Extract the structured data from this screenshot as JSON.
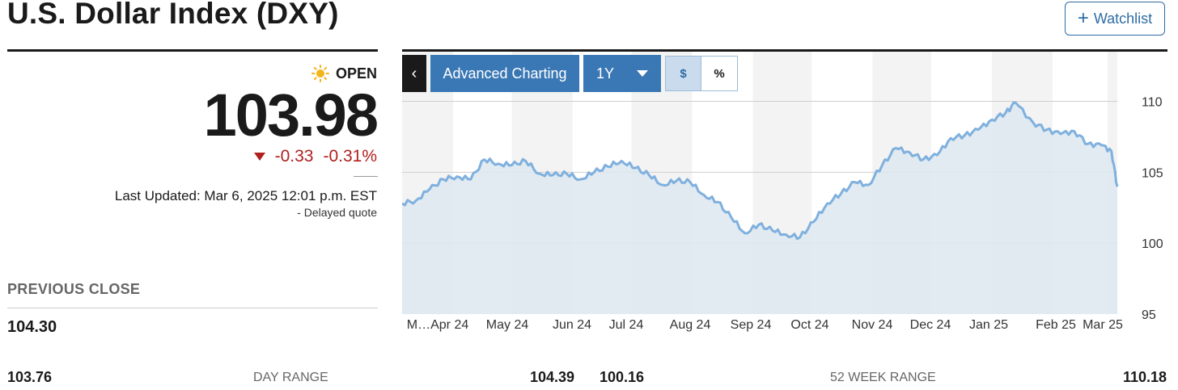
{
  "header": {
    "title": "U.S. Dollar Index (DXY)",
    "watchlist_label": "Watchlist"
  },
  "quote": {
    "status": "OPEN",
    "price": "103.98",
    "change": "-0.33",
    "change_pct": "-0.31%",
    "last_updated": "Last Updated: Mar 6, 2025 12:01 p.m. EST",
    "delayed": "-  Delayed quote"
  },
  "previous_close": {
    "label": "PREVIOUS CLOSE",
    "value": "104.30"
  },
  "day_range": {
    "low": "103.76",
    "label": "DAY RANGE",
    "high": "104.39"
  },
  "week52_range": {
    "low": "100.16",
    "label": "52 WEEK RANGE",
    "high": "110.18"
  },
  "chart_controls": {
    "advanced_label": "Advanced Charting",
    "range_label": "1Y",
    "dollar_label": "$",
    "percent_label": "%"
  },
  "colors": {
    "negative": "#b0201e",
    "accent": "#3a78b5",
    "line": "#7fb0de",
    "area": "#dde7f0"
  },
  "chart_data": {
    "type": "area",
    "title": "",
    "xlabel": "",
    "ylabel": "",
    "ylim": [
      95,
      111
    ],
    "yticks": [
      95,
      100,
      105,
      110
    ],
    "grid": "horizontal",
    "month_labels": [
      "M…Apr 24",
      "May 24",
      "Jun 24",
      "Jul 24",
      "Aug 24",
      "Sep 24",
      "Oct 24",
      "Nov 24",
      "Dec 24",
      "Jan 25",
      "Feb 25",
      "Mar 25"
    ],
    "x": [
      "2024-03-06",
      "2024-03-13",
      "2024-03-20",
      "2024-03-27",
      "2024-04-03",
      "2024-04-10",
      "2024-04-17",
      "2024-04-24",
      "2024-05-01",
      "2024-05-08",
      "2024-05-15",
      "2024-05-22",
      "2024-05-29",
      "2024-06-05",
      "2024-06-12",
      "2024-06-19",
      "2024-06-26",
      "2024-07-03",
      "2024-07-10",
      "2024-07-17",
      "2024-07-24",
      "2024-07-31",
      "2024-08-07",
      "2024-08-14",
      "2024-08-21",
      "2024-08-28",
      "2024-09-04",
      "2024-09-11",
      "2024-09-18",
      "2024-09-25",
      "2024-10-02",
      "2024-10-09",
      "2024-10-16",
      "2024-10-23",
      "2024-10-30",
      "2024-11-06",
      "2024-11-13",
      "2024-11-20",
      "2024-11-27",
      "2024-12-04",
      "2024-12-11",
      "2024-12-18",
      "2024-12-25",
      "2025-01-01",
      "2025-01-08",
      "2025-01-13",
      "2025-01-22",
      "2025-01-29",
      "2025-02-05",
      "2025-02-12",
      "2025-02-19",
      "2025-02-26",
      "2025-03-03",
      "2025-03-06"
    ],
    "series": [
      {
        "values": [
          102.8,
          103.0,
          103.8,
          104.5,
          104.7,
          104.5,
          105.9,
          105.6,
          105.5,
          105.8,
          104.9,
          104.8,
          104.9,
          104.5,
          105.0,
          105.4,
          105.8,
          105.3,
          104.8,
          104.1,
          104.4,
          104.3,
          103.4,
          102.9,
          101.8,
          100.7,
          101.3,
          100.9,
          100.6,
          100.4,
          101.5,
          102.8,
          103.5,
          104.3,
          104.1,
          105.5,
          106.7,
          106.4,
          105.9,
          106.2,
          107.4,
          107.6,
          108.0,
          108.7,
          109.2,
          109.9,
          108.5,
          108.0,
          107.7,
          107.9,
          107.0,
          106.9,
          106.5,
          103.98
        ]
      }
    ]
  }
}
